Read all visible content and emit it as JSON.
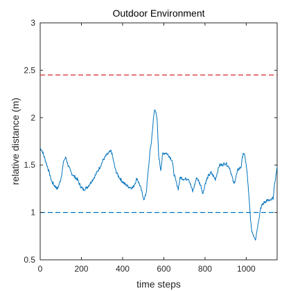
{
  "chart_data": {
    "type": "line",
    "title": "Outdoor Environment",
    "xlabel": "time steps",
    "ylabel": "relative distance (m)",
    "xlim": [
      0,
      1150
    ],
    "ylim": [
      0.5,
      3
    ],
    "xticks": [
      0,
      200,
      400,
      600,
      800,
      1000
    ],
    "yticks": [
      0.5,
      1,
      1.5,
      2,
      2.5,
      3
    ],
    "xtick_labels": [
      "0",
      "200",
      "400",
      "600",
      "800",
      "1000"
    ],
    "ytick_labels": [
      "0.5",
      "1",
      "1.5",
      "2",
      "2.5",
      "3"
    ],
    "grid": false,
    "colors": {
      "series": "#0072BD",
      "upper_limit": "#D62728",
      "lower_limit": "#0072BD",
      "axes": "#262626"
    },
    "reference_lines": [
      {
        "y": 2.45,
        "style": "dashed",
        "color": "#D62728"
      },
      {
        "y": 1.0,
        "style": "dashed",
        "color": "#0072BD"
      }
    ],
    "series": [
      {
        "x": [
          0,
          10,
          25,
          40,
          55,
          70,
          85,
          100,
          115,
          125,
          135,
          150,
          165,
          180,
          195,
          210,
          230,
          250,
          270,
          290,
          305,
          320,
          335,
          345,
          355,
          365,
          375,
          390,
          410,
          430,
          450,
          470,
          485,
          495,
          505,
          515,
          525,
          532,
          540,
          548,
          555,
          562,
          568,
          575,
          585,
          595,
          610,
          625,
          640,
          650,
          660,
          670,
          680,
          700,
          720,
          740,
          760,
          780,
          790,
          800,
          815,
          830,
          850,
          870,
          880,
          900,
          920,
          940,
          960,
          975,
          985,
          995,
          1005,
          1015,
          1025,
          1035,
          1045,
          1055,
          1070,
          1085,
          1100,
          1115,
          1130,
          1140,
          1150
        ],
        "y": [
          1.68,
          1.65,
          1.55,
          1.45,
          1.33,
          1.28,
          1.25,
          1.35,
          1.55,
          1.58,
          1.5,
          1.42,
          1.38,
          1.35,
          1.28,
          1.24,
          1.27,
          1.33,
          1.4,
          1.48,
          1.55,
          1.6,
          1.63,
          1.65,
          1.55,
          1.45,
          1.4,
          1.35,
          1.3,
          1.27,
          1.26,
          1.36,
          1.28,
          1.2,
          1.13,
          1.22,
          1.45,
          1.62,
          1.75,
          1.95,
          2.08,
          2.07,
          1.95,
          1.6,
          1.45,
          1.62,
          1.63,
          1.6,
          1.55,
          1.4,
          1.32,
          1.25,
          1.37,
          1.35,
          1.36,
          1.22,
          1.37,
          1.28,
          1.2,
          1.3,
          1.38,
          1.42,
          1.35,
          1.5,
          1.5,
          1.52,
          1.47,
          1.3,
          1.45,
          1.48,
          1.63,
          1.58,
          1.4,
          1.1,
          0.82,
          0.76,
          0.72,
          0.85,
          1.05,
          1.1,
          1.13,
          1.12,
          1.15,
          1.33,
          1.48
        ]
      }
    ]
  }
}
